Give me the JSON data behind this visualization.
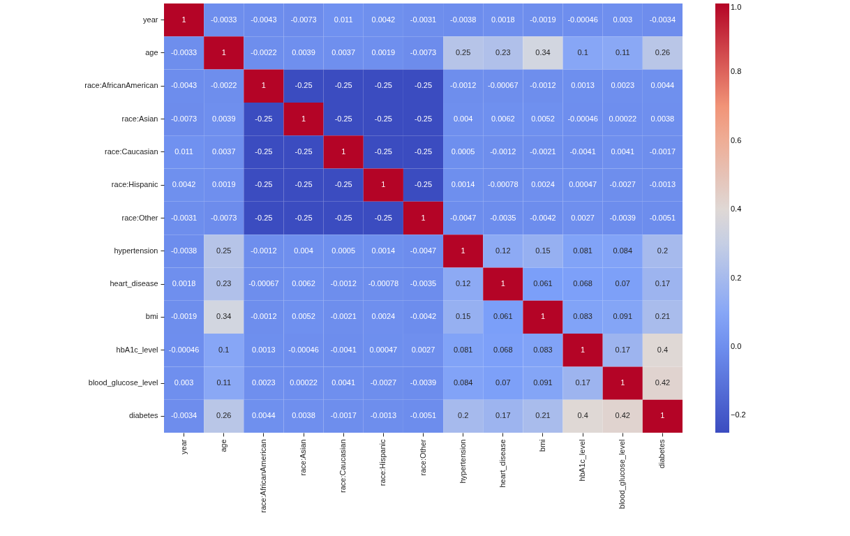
{
  "chart_data": {
    "type": "heatmap",
    "data_labels": true,
    "categories": [
      "year",
      "age",
      "race:AfricanAmerican",
      "race:Asian",
      "race:Caucasian",
      "race:Hispanic",
      "race:Other",
      "hypertension",
      "heart_disease",
      "bmi",
      "hbA1c_level",
      "blood_glucose_level",
      "diabetes"
    ],
    "y_categories": [
      "year",
      "age",
      "race:AfricanAmerican",
      "race:Asian",
      "race:Caucasian",
      "race:Hispanic",
      "race:Other",
      "hypertension",
      "heart_disease",
      "bmi",
      "hbA1c_level",
      "blood_glucose_level",
      "diabetes"
    ],
    "cells": [
      [
        1,
        -0.0033,
        -0.0043,
        -0.0073,
        0.011,
        0.0042,
        -0.0031,
        -0.0038,
        0.0018,
        -0.0019,
        -0.00046,
        0.003,
        -0.0034
      ],
      [
        -0.0033,
        1,
        -0.0022,
        0.0039,
        0.0037,
        0.0019,
        -0.0073,
        0.25,
        0.23,
        0.34,
        0.1,
        0.11,
        0.26
      ],
      [
        -0.0043,
        -0.0022,
        1,
        -0.25,
        -0.25,
        -0.25,
        -0.25,
        -0.0012,
        -0.00067,
        -0.0012,
        0.0013,
        0.0023,
        0.0044
      ],
      [
        -0.0073,
        0.0039,
        -0.25,
        1,
        -0.25,
        -0.25,
        -0.25,
        0.004,
        0.0062,
        0.0052,
        -0.00046,
        0.00022,
        0.0038
      ],
      [
        0.011,
        0.0037,
        -0.25,
        -0.25,
        1,
        -0.25,
        -0.25,
        0.0005,
        -0.0012,
        -0.0021,
        -0.0041,
        0.0041,
        -0.0017
      ],
      [
        0.0042,
        0.0019,
        -0.25,
        -0.25,
        -0.25,
        1,
        -0.25,
        0.0014,
        -0.00078,
        0.0024,
        0.00047,
        -0.0027,
        -0.0013
      ],
      [
        -0.0031,
        -0.0073,
        -0.25,
        -0.25,
        -0.25,
        -0.25,
        1,
        -0.0047,
        -0.0035,
        -0.0042,
        0.0027,
        -0.0039,
        -0.0051
      ],
      [
        -0.0038,
        0.25,
        -0.0012,
        0.004,
        0.0005,
        0.0014,
        -0.0047,
        1,
        0.12,
        0.15,
        0.081,
        0.084,
        0.2
      ],
      [
        0.0018,
        0.23,
        -0.00067,
        0.0062,
        -0.0012,
        -0.00078,
        -0.0035,
        0.12,
        1,
        0.061,
        0.068,
        0.07,
        0.17
      ],
      [
        -0.0019,
        0.34,
        -0.0012,
        0.0052,
        -0.0021,
        0.0024,
        -0.0042,
        0.15,
        0.061,
        1,
        0.083,
        0.091,
        0.21
      ],
      [
        -0.00046,
        0.1,
        0.0013,
        -0.00046,
        -0.0041,
        0.00047,
        0.0027,
        0.081,
        0.068,
        0.083,
        1,
        0.17,
        0.4
      ],
      [
        0.003,
        0.11,
        0.0023,
        0.00022,
        0.0041,
        -0.0027,
        -0.0039,
        0.084,
        0.07,
        0.091,
        0.17,
        1,
        0.42
      ],
      [
        -0.0034,
        0.26,
        0.0044,
        0.0038,
        -0.0017,
        -0.0013,
        -0.0051,
        0.2,
        0.17,
        0.21,
        0.4,
        0.42,
        1
      ]
    ],
    "clim": [
      -0.25,
      1
    ],
    "cticks": [
      {
        "value": -0.2,
        "label": "−0.2"
      },
      {
        "value": 0,
        "label": "0.0"
      },
      0.2,
      0.4,
      0.6,
      0.8,
      {
        "value": 1,
        "label": "1.0"
      }
    ]
  }
}
